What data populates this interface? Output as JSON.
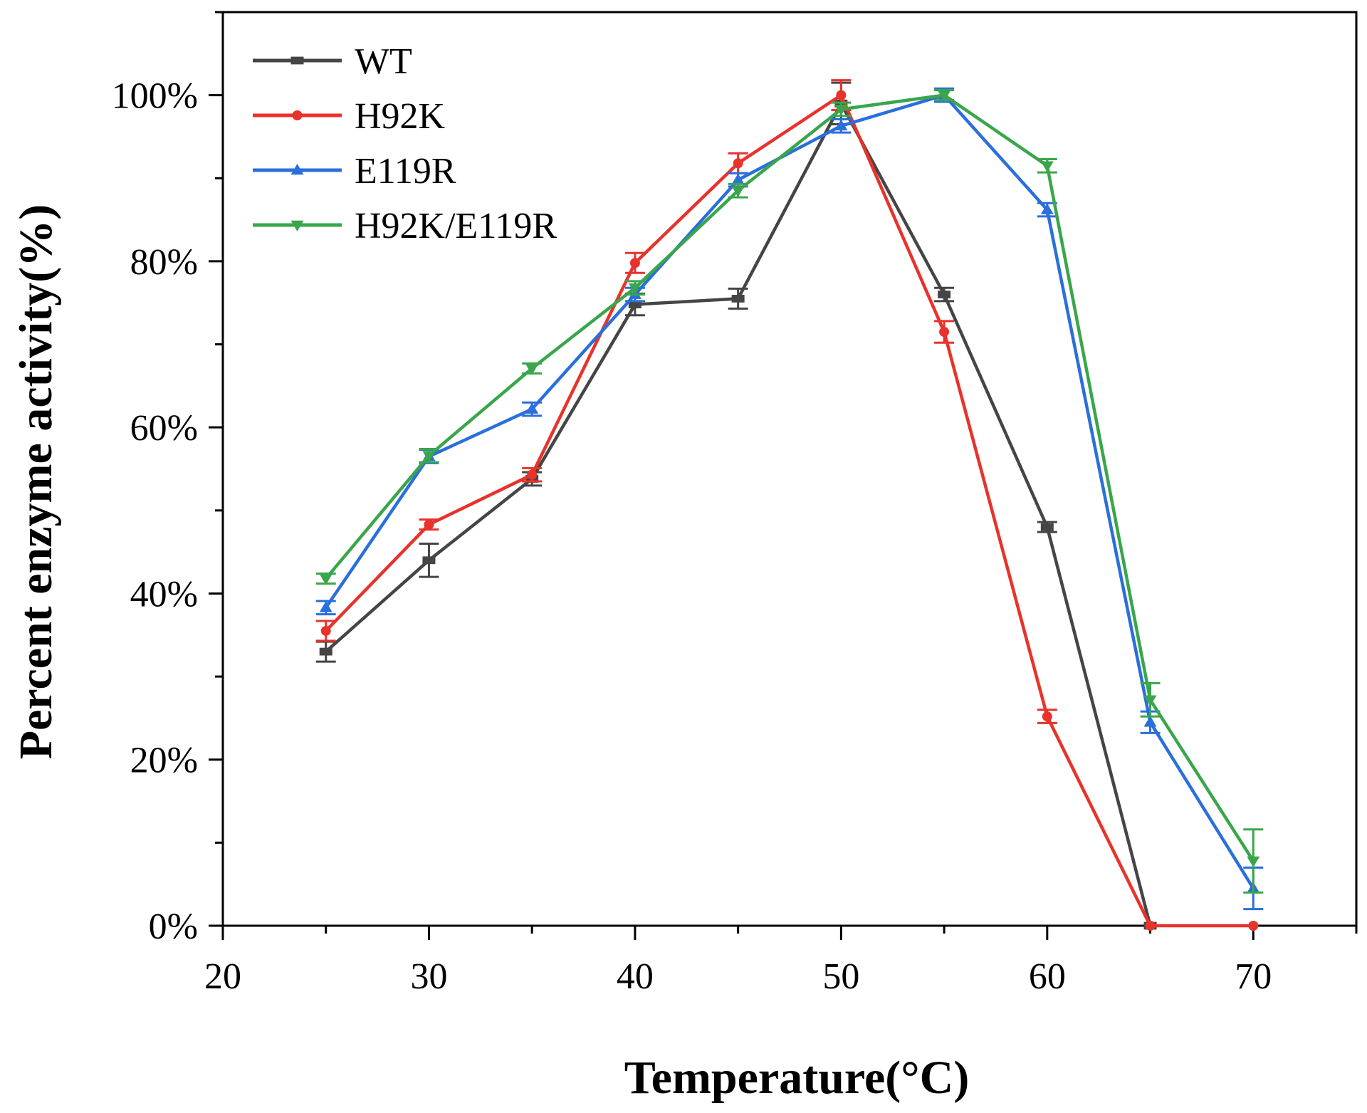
{
  "chart_data": {
    "type": "line",
    "title": "",
    "xlabel": "Temperature(°C)",
    "ylabel": "Percent enzyme activity(%)",
    "xlim": [
      20,
      75
    ],
    "ylim": [
      0,
      110
    ],
    "x_ticks": [
      20,
      30,
      40,
      50,
      60,
      70
    ],
    "y_ticks": [
      0,
      20,
      40,
      60,
      80,
      100
    ],
    "y_tick_labels": [
      "0%",
      "20%",
      "40%",
      "60%",
      "80%",
      "100%"
    ],
    "x": [
      25,
      30,
      35,
      40,
      45,
      50,
      55,
      60,
      65,
      70
    ],
    "legend_position": "top-left",
    "series": [
      {
        "name": "WT",
        "color": "#454545",
        "marker": "square",
        "values": [
          33,
          44,
          53.8,
          74.8,
          75.5,
          99,
          76,
          48,
          0,
          null
        ],
        "errors": [
          1.2,
          2,
          0.8,
          1.3,
          1.2,
          2.5,
          0.8,
          0.6,
          0,
          null
        ]
      },
      {
        "name": "H92K",
        "color": "#e8322b",
        "marker": "circle",
        "values": [
          35.5,
          48.3,
          54.3,
          79.8,
          91.8,
          100,
          71.5,
          25.2,
          0,
          0
        ],
        "errors": [
          1.2,
          0.6,
          0.8,
          1.2,
          1.2,
          1.8,
          1.3,
          0.8,
          0,
          0
        ]
      },
      {
        "name": "E119R",
        "color": "#2a6fdb",
        "marker": "triangle-up",
        "values": [
          38.3,
          56.5,
          62.2,
          76,
          89.8,
          96.3,
          100,
          86.2,
          24.5,
          4.5
        ],
        "errors": [
          0.8,
          0.8,
          0.8,
          0.8,
          0.8,
          0.8,
          0.8,
          0.8,
          1.3,
          2.5
        ]
      },
      {
        "name": "H92K/E119R",
        "color": "#3aa64b",
        "marker": "triangle-down",
        "values": [
          41.8,
          56.6,
          67.1,
          76.8,
          88.5,
          98.3,
          100,
          91.5,
          27.2,
          7.8
        ],
        "errors": [
          0.6,
          0.8,
          0.6,
          0.8,
          0.8,
          0.8,
          0.6,
          0.8,
          2,
          3.8
        ]
      }
    ]
  }
}
